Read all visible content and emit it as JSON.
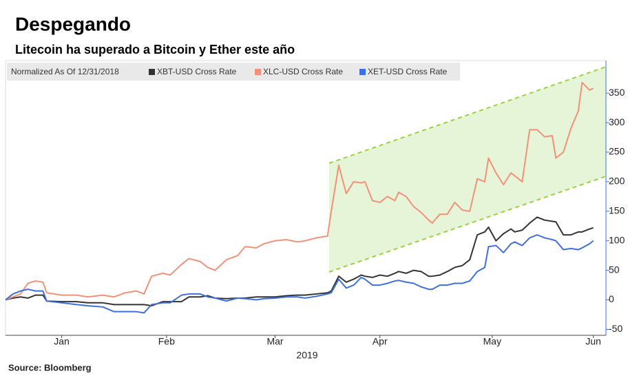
{
  "chart_data": {
    "type": "line",
    "title": "Despegando",
    "subtitle": "Litecoin ha superado a Bitcoin y Ether este año",
    "legend_title": "Normalized As Of 12/31/2018",
    "xlabel": "2019",
    "source": "Source: Bloomberg",
    "x": [
      0,
      2,
      4,
      6,
      8,
      10,
      11,
      15,
      19,
      22,
      26,
      29,
      32,
      35,
      37,
      39,
      42,
      44,
      47,
      49,
      52,
      54,
      56,
      59,
      62,
      64,
      67,
      69,
      72,
      75,
      78,
      80,
      83,
      86,
      87,
      89,
      91,
      93,
      95,
      96,
      98,
      100,
      102,
      104,
      105,
      107,
      109,
      111,
      113,
      114,
      116,
      118,
      120,
      122,
      124,
      126,
      128,
      129,
      131,
      133,
      135,
      136,
      138,
      140,
      142,
      144,
      146,
      147,
      149,
      151,
      153,
      154,
      156,
      157
    ],
    "xlim": [
      0,
      160
    ],
    "xticks": [
      {
        "value": 15,
        "label": "Jan"
      },
      {
        "value": 43,
        "label": "Feb"
      },
      {
        "value": 72,
        "label": "Mar"
      },
      {
        "value": 100,
        "label": "Apr"
      },
      {
        "value": 130,
        "label": "May"
      },
      {
        "value": 157,
        "label": "Jun"
      }
    ],
    "ylim": [
      -60,
      405
    ],
    "yticks": [
      -50,
      0,
      50,
      100,
      150,
      200,
      250,
      300,
      350
    ],
    "series": [
      {
        "name": "XBT-USD Cross Rate",
        "color": "#333333",
        "values": [
          0,
          3,
          5,
          3,
          8,
          8,
          -2,
          -3,
          -3,
          -5,
          -5,
          -8,
          -8,
          -8,
          -8,
          -10,
          -3,
          -3,
          -3,
          5,
          5,
          7,
          3,
          2,
          3,
          3,
          5,
          5,
          5,
          7,
          8,
          8,
          10,
          12,
          15,
          40,
          30,
          35,
          42,
          40,
          38,
          42,
          40,
          45,
          48,
          45,
          50,
          48,
          40,
          40,
          42,
          48,
          55,
          58,
          68,
          110,
          115,
          123,
          100,
          112,
          120,
          115,
          118,
          130,
          140,
          135,
          133,
          132,
          110,
          110,
          115,
          115,
          120,
          122
        ]
      },
      {
        "name": "XLC-USD Cross Rate",
        "color": "#f39178",
        "values": [
          0,
          5,
          10,
          28,
          32,
          30,
          12,
          8,
          8,
          5,
          8,
          5,
          12,
          15,
          10,
          40,
          45,
          42,
          60,
          70,
          65,
          55,
          50,
          68,
          75,
          90,
          88,
          95,
          100,
          102,
          98,
          100,
          105,
          108,
          150,
          228,
          180,
          200,
          198,
          200,
          168,
          165,
          175,
          168,
          182,
          175,
          158,
          148,
          135,
          130,
          145,
          145,
          165,
          152,
          150,
          205,
          200,
          240,
          215,
          195,
          215,
          210,
          200,
          288,
          288,
          276,
          278,
          240,
          250,
          290,
          320,
          368,
          355,
          358
        ]
      },
      {
        "name": "XET-USD Cross Rate",
        "color": "#3d6fe3",
        "values": [
          0,
          10,
          15,
          18,
          15,
          15,
          -2,
          -5,
          -8,
          -10,
          -12,
          -20,
          -20,
          -20,
          -22,
          -8,
          -5,
          -5,
          8,
          10,
          10,
          5,
          3,
          -2,
          3,
          2,
          0,
          2,
          3,
          5,
          5,
          3,
          6,
          10,
          12,
          35,
          20,
          25,
          38,
          35,
          25,
          25,
          28,
          32,
          33,
          30,
          28,
          22,
          18,
          18,
          25,
          25,
          28,
          28,
          32,
          48,
          55,
          90,
          92,
          80,
          95,
          98,
          92,
          105,
          110,
          105,
          102,
          100,
          85,
          87,
          85,
          88,
          95,
          100
        ]
      }
    ]
  }
}
